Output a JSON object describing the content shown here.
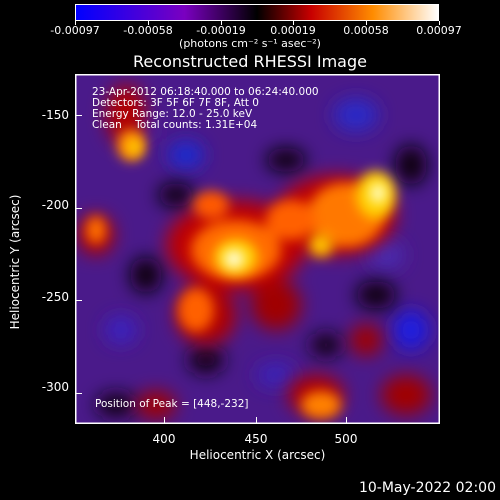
{
  "colorbar": {
    "tick_labels": [
      "-0.00097",
      "-0.00058",
      "-0.00019",
      "0.00019",
      "0.00058",
      "0.00097"
    ],
    "unit_label": "(photons cm⁻² s⁻¹ asec⁻²)"
  },
  "title": "Reconstructed RHESSI Image",
  "info": {
    "line1": "23-Apr-2012 06:18:40.000 to 06:24:40.000",
    "line2": "Detectors: 3F 5F 6F 7F 8F, Att 0",
    "line3": "Energy Range: 12.0 - 25.0 keV",
    "line4": "Clean    Total counts: 1.31E+04"
  },
  "peak_text": "Position of Peak = [448,-232]",
  "axes": {
    "xlabel": "Heliocentric X (arcsec)",
    "ylabel": "Heliocentric Y (arcsec)",
    "x_ticks": [
      "400",
      "450",
      "500"
    ],
    "y_ticks": [
      "-150",
      "-200",
      "-250",
      "-300"
    ]
  },
  "datestamp": "10-May-2022 02:00",
  "chart_data": {
    "type": "heatmap",
    "title": "Reconstructed RHESSI Image",
    "xlabel": "Heliocentric X (arcsec)",
    "ylabel": "Heliocentric Y (arcsec)",
    "xlim": [
      353,
      540
    ],
    "ylim": [
      -321,
      -134
    ],
    "zlim": [
      -0.00097,
      0.00097
    ],
    "colormap": [
      "#0000ff",
      "#6a00c8",
      "#000000",
      "#c80000",
      "#ff8c00",
      "#ffffff"
    ],
    "peak": [
      448,
      -232
    ]
  }
}
